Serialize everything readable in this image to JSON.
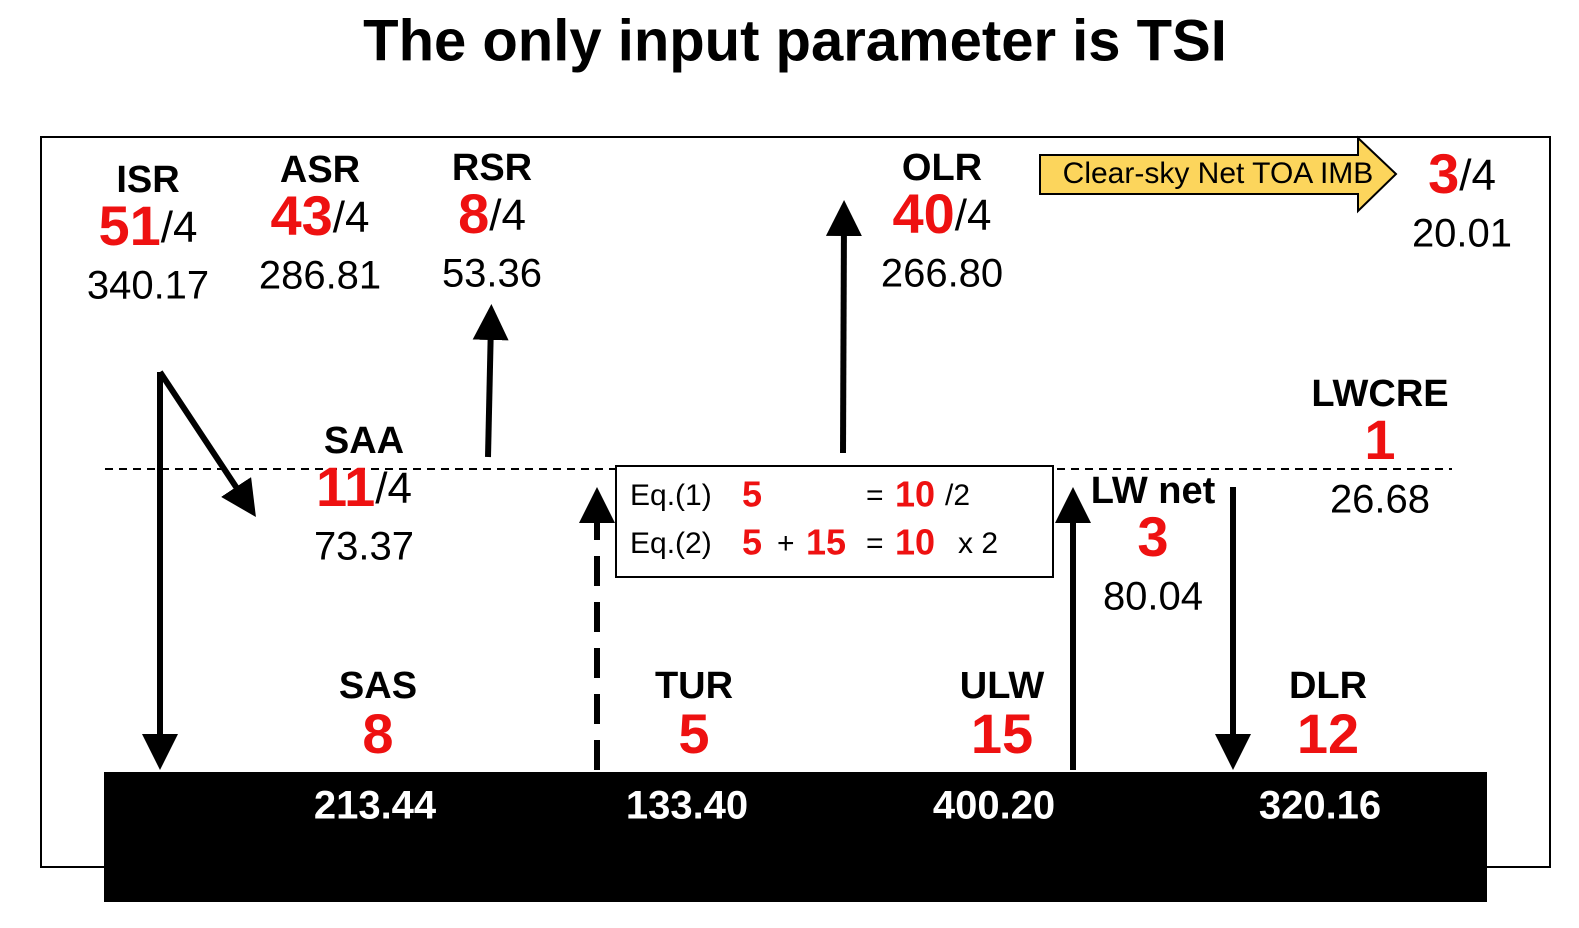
{
  "title": "The only input parameter is TSI",
  "nodes": [
    {
      "name": "ISR",
      "value": 51,
      "denom": "/4",
      "flux": "340.17"
    },
    {
      "name": "ASR",
      "value": 43,
      "denom": "/4",
      "flux": "286.81"
    },
    {
      "name": "RSR",
      "value": 8,
      "denom": "/4",
      "flux": "53.36"
    },
    {
      "name": "OLR",
      "value": 40,
      "denom": "/4",
      "flux": "266.80"
    },
    {
      "name": "SAA",
      "value": 11,
      "denom": "/4",
      "flux": "73.37"
    },
    {
      "name": "LWCRE",
      "value": 1,
      "flux": "26.68"
    },
    {
      "name": "LW net",
      "value": 3,
      "flux": "80.04"
    }
  ],
  "toa": {
    "label": "Clear-sky Net TOA IMB",
    "value": 3,
    "denom": "/4",
    "flux": "20.01"
  },
  "surface": [
    {
      "name": "SAS",
      "value": 8
    },
    {
      "name": "TUR",
      "value": 5
    },
    {
      "name": "ULW",
      "value": 15
    },
    {
      "name": "DLR",
      "value": 12
    }
  ],
  "ground": [
    "213.44",
    "133.40",
    "400.20",
    "320.16"
  ],
  "equations": [
    [
      "Eq.(1)",
      5,
      "=",
      10,
      "/2"
    ],
    [
      "Eq.(2)",
      5,
      "+",
      15,
      "=",
      10,
      "x 2"
    ]
  ]
}
